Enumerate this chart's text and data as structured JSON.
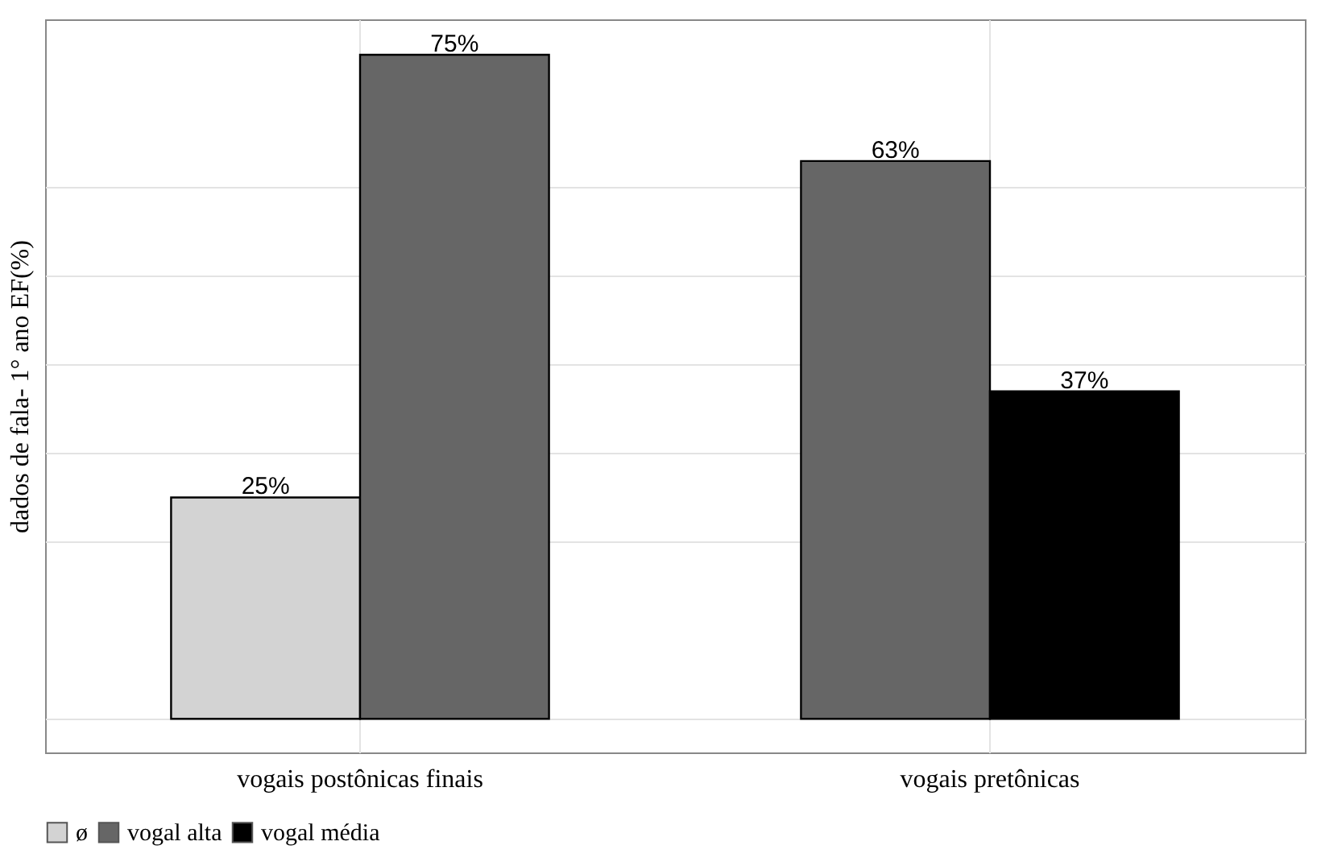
{
  "chart_data": {
    "type": "bar",
    "ylabel": "dados de fala- 1° ano EF(%)",
    "categories": [
      "vogais postônicas finais",
      "vogais pretônicas"
    ],
    "series": [
      {
        "name": "ø",
        "color": "#d3d3d3",
        "values": [
          25,
          null
        ],
        "value_labels": [
          "25%",
          null
        ]
      },
      {
        "name": "vogal alta",
        "color": "#666666",
        "values": [
          75,
          63
        ],
        "value_labels": [
          "75%",
          "63%"
        ]
      },
      {
        "name": "vogal média",
        "color": "#000000",
        "values": [
          null,
          37
        ],
        "value_labels": [
          null,
          "37%"
        ]
      }
    ],
    "ylim": [
      -3.8,
      79
    ],
    "yticks": [
      {
        "value": 0,
        "label": null
      },
      {
        "value": 20,
        "label": null
      },
      {
        "value": 30,
        "label": null
      },
      {
        "value": 40,
        "label": null
      },
      {
        "value": 50,
        "label": null
      },
      {
        "value": 60,
        "label": null
      }
    ],
    "grid": true,
    "legend": "bottom"
  }
}
